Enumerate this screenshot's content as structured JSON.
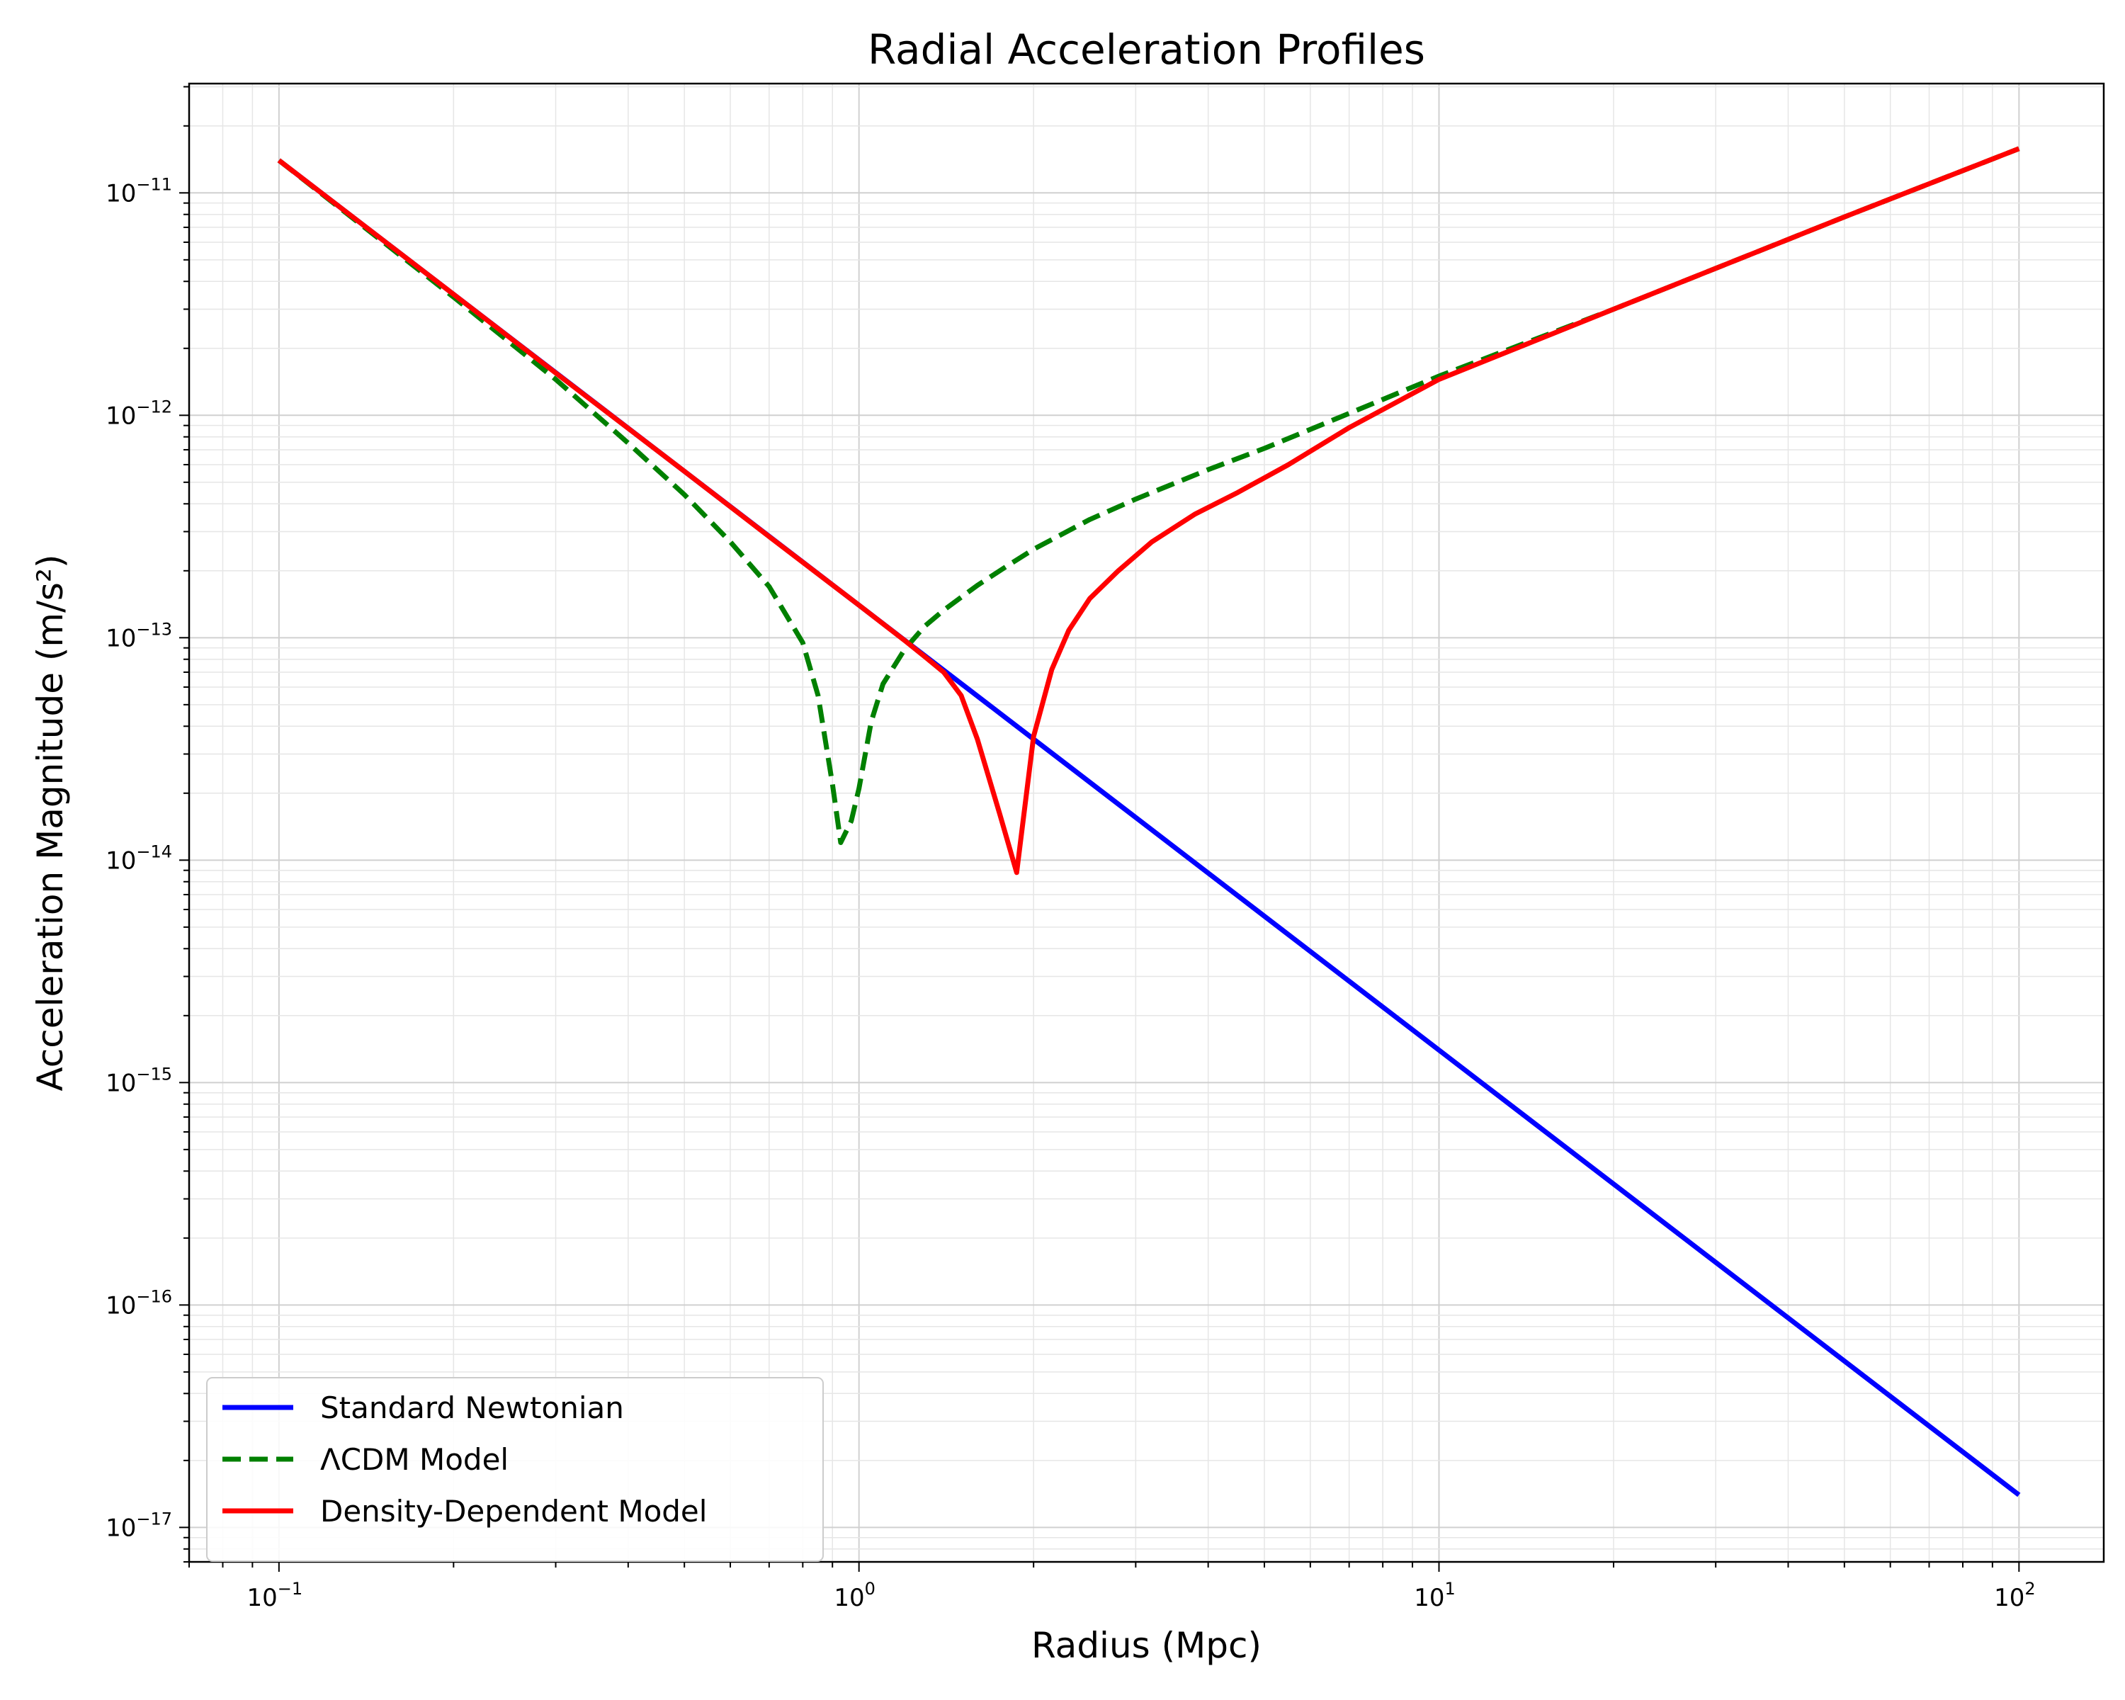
{
  "chart_data": {
    "type": "line",
    "title": "Radial Acceleration Profiles",
    "xlabel": "Radius (Mpc)",
    "ylabel": "Acceleration Magnitude (m/s²)",
    "xscale": "log",
    "yscale": "log",
    "xlim": [
      0.07,
      140
    ],
    "ylim": [
      7e-18,
      3.1e-11
    ],
    "grid": true,
    "legend_position": "lower-left",
    "x_ticks": [
      {
        "base": "10",
        "exp": "−1",
        "value": 0.1
      },
      {
        "base": "10",
        "exp": "0",
        "value": 1
      },
      {
        "base": "10",
        "exp": "1",
        "value": 10
      },
      {
        "base": "10",
        "exp": "2",
        "value": 100
      }
    ],
    "y_ticks": [
      {
        "base": "10",
        "exp": "−17",
        "value": 1e-17
      },
      {
        "base": "10",
        "exp": "−16",
        "value": 1e-16
      },
      {
        "base": "10",
        "exp": "−15",
        "value": 1e-15
      },
      {
        "base": "10",
        "exp": "−14",
        "value": 1e-14
      },
      {
        "base": "10",
        "exp": "−13",
        "value": 1e-13
      },
      {
        "base": "10",
        "exp": "−12",
        "value": 1e-12
      },
      {
        "base": "10",
        "exp": "−11",
        "value": 1e-11
      }
    ],
    "series": [
      {
        "name": "Standard Newtonian",
        "color": "#0000ff",
        "dash": "solid",
        "points": [
          [
            0.1,
            1.4e-11
          ],
          [
            1,
            1.4e-13
          ],
          [
            10,
            1.4e-15
          ],
          [
            100,
            1.4e-17
          ]
        ]
      },
      {
        "name": "ΛCDM Model",
        "color": "#008000",
        "dash": "dashed",
        "points": [
          [
            0.1,
            1.4e-11
          ],
          [
            0.2,
            3.4e-12
          ],
          [
            0.3,
            1.45e-12
          ],
          [
            0.4,
            7.5e-13
          ],
          [
            0.5,
            4.4e-13
          ],
          [
            0.6,
            2.7e-13
          ],
          [
            0.7,
            1.7e-13
          ],
          [
            0.8,
            9.5e-14
          ],
          [
            0.85,
            5.5e-14
          ],
          [
            0.9,
            2.2e-14
          ],
          [
            0.93,
            1.2e-14
          ],
          [
            0.97,
            1.5e-14
          ],
          [
            1.0,
            2.1e-14
          ],
          [
            1.05,
            4.2e-14
          ],
          [
            1.1,
            6.2e-14
          ],
          [
            1.2,
            8.9e-14
          ],
          [
            1.3,
            1.13e-13
          ],
          [
            1.4,
            1.33e-13
          ],
          [
            1.6,
            1.72e-13
          ],
          [
            1.8,
            2.1e-13
          ],
          [
            2.0,
            2.5e-13
          ],
          [
            2.5,
            3.4e-13
          ],
          [
            3.0,
            4.2e-13
          ],
          [
            4.0,
            5.7e-13
          ],
          [
            5.0,
            7.1e-13
          ],
          [
            7.0,
            1.02e-12
          ],
          [
            10.0,
            1.5e-12
          ],
          [
            20.0,
            3e-12
          ],
          [
            50.0,
            7.8e-12
          ],
          [
            100.0,
            1.58e-11
          ]
        ]
      },
      {
        "name": "Density-Dependent Model",
        "color": "#ff0000",
        "dash": "solid",
        "points": [
          [
            0.1,
            1.4e-11
          ],
          [
            0.2,
            3.5e-12
          ],
          [
            0.3,
            1.55e-12
          ],
          [
            0.5,
            5.6e-13
          ],
          [
            0.7,
            2.85e-13
          ],
          [
            1.0,
            1.4e-13
          ],
          [
            1.2,
            9.7e-14
          ],
          [
            1.3,
            8.2e-14
          ],
          [
            1.4,
            7e-14
          ],
          [
            1.5,
            5.5e-14
          ],
          [
            1.6,
            3.5e-14
          ],
          [
            1.75,
            1.6e-14
          ],
          [
            1.87,
            8.8e-15
          ],
          [
            2.0,
            3.6e-14
          ],
          [
            2.15,
            7.2e-14
          ],
          [
            2.3,
            1.08e-13
          ],
          [
            2.5,
            1.5e-13
          ],
          [
            2.8,
            2e-13
          ],
          [
            3.2,
            2.7e-13
          ],
          [
            3.8,
            3.6e-13
          ],
          [
            4.5,
            4.5e-13
          ],
          [
            5.5,
            6e-13
          ],
          [
            7.0,
            8.8e-13
          ],
          [
            10.0,
            1.45e-12
          ],
          [
            20.0,
            3e-12
          ],
          [
            50.0,
            7.8e-12
          ],
          [
            100.0,
            1.58e-11
          ]
        ]
      }
    ]
  }
}
